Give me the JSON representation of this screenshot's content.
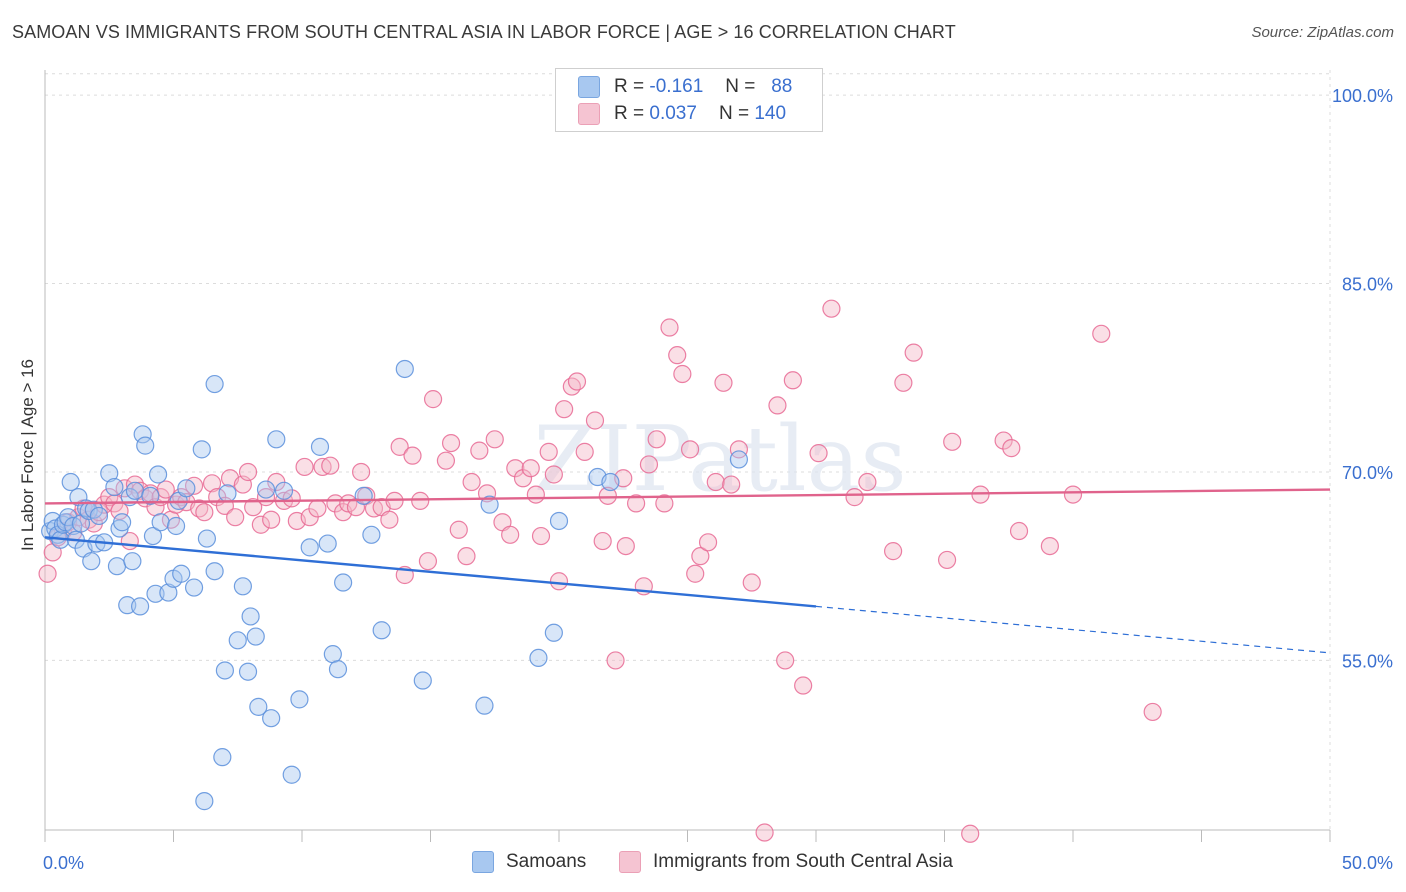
{
  "header": {
    "title": "SAMOAN VS IMMIGRANTS FROM SOUTH CENTRAL ASIA IN LABOR FORCE | AGE > 16 CORRELATION CHART",
    "source": "Source: ZipAtlas.com"
  },
  "watermark": "ZIPatlas",
  "legend": {
    "rows": [
      {
        "r_label": "R =",
        "r_value": "-0.161",
        "n_label": "N =",
        "n_value": "88",
        "color": "#a8c8f0"
      },
      {
        "r_label": "R =",
        "r_value": "0.037",
        "n_label": "N =",
        "n_value": "140",
        "color": "#f5b8c8"
      }
    ]
  },
  "bottom_legend": {
    "items": [
      {
        "label": "Samoans",
        "color": "#a8c8f0"
      },
      {
        "label": "Immigrants from South Central Asia",
        "color": "#f5b8c8"
      }
    ]
  },
  "chart_data": {
    "type": "scatter",
    "title": "SAMOAN VS IMMIGRANTS FROM SOUTH CENTRAL ASIA IN LABOR FORCE | AGE > 16 CORRELATION CHART",
    "xlabel": "",
    "ylabel": "In Labor Force | Age > 16",
    "xlim": [
      0,
      50
    ],
    "ylim": [
      41.5,
      102
    ],
    "x_tick_labels": [
      "0.0%",
      "50.0%"
    ],
    "y_ticks": [
      55,
      70,
      85,
      100
    ],
    "y_tick_labels": [
      "55.0%",
      "70.0%",
      "85.0%",
      "100.0%"
    ],
    "grid": true,
    "legend_position": "top-center",
    "series": [
      {
        "name": "Samoans",
        "color": "#5b8fdc",
        "fill": "#a8c8f0",
        "R": -0.161,
        "N": 88,
        "trend": {
          "x": [
            0,
            30
          ],
          "y": [
            64.8,
            59.3
          ],
          "dashed_to": [
            50,
            55.6
          ]
        },
        "points": [
          [
            0.2,
            65.3
          ],
          [
            0.3,
            66.1
          ],
          [
            0.4,
            65.5
          ],
          [
            0.5,
            65.0
          ],
          [
            0.6,
            64.6
          ],
          [
            0.7,
            65.8
          ],
          [
            0.8,
            66.0
          ],
          [
            0.9,
            66.4
          ],
          [
            1.0,
            69.2
          ],
          [
            1.1,
            65.7
          ],
          [
            1.2,
            64.6
          ],
          [
            1.3,
            68.0
          ],
          [
            1.4,
            65.9
          ],
          [
            1.5,
            63.9
          ],
          [
            1.6,
            67.1
          ],
          [
            1.7,
            66.9
          ],
          [
            1.8,
            62.9
          ],
          [
            1.9,
            67.0
          ],
          [
            2.0,
            64.3
          ],
          [
            2.1,
            66.5
          ],
          [
            2.3,
            64.4
          ],
          [
            2.5,
            69.9
          ],
          [
            2.7,
            68.8
          ],
          [
            2.8,
            62.5
          ],
          [
            2.9,
            65.5
          ],
          [
            3.0,
            66.0
          ],
          [
            3.2,
            59.4
          ],
          [
            3.3,
            68.0
          ],
          [
            3.4,
            62.9
          ],
          [
            3.5,
            68.5
          ],
          [
            3.7,
            59.3
          ],
          [
            3.8,
            73.0
          ],
          [
            3.9,
            72.1
          ],
          [
            4.1,
            68.1
          ],
          [
            4.2,
            64.9
          ],
          [
            4.3,
            60.3
          ],
          [
            4.4,
            69.8
          ],
          [
            4.5,
            66.0
          ],
          [
            4.8,
            60.4
          ],
          [
            5.0,
            61.5
          ],
          [
            5.1,
            65.7
          ],
          [
            5.2,
            67.7
          ],
          [
            5.3,
            61.9
          ],
          [
            5.5,
            68.7
          ],
          [
            5.8,
            60.8
          ],
          [
            6.1,
            71.8
          ],
          [
            6.2,
            43.8
          ],
          [
            6.3,
            64.7
          ],
          [
            6.6,
            77.0
          ],
          [
            6.6,
            62.1
          ],
          [
            6.9,
            47.3
          ],
          [
            7.0,
            54.2
          ],
          [
            7.1,
            68.3
          ],
          [
            7.5,
            56.6
          ],
          [
            7.7,
            60.9
          ],
          [
            7.9,
            54.1
          ],
          [
            8.0,
            58.5
          ],
          [
            8.2,
            56.9
          ],
          [
            8.3,
            51.3
          ],
          [
            8.6,
            68.6
          ],
          [
            8.8,
            50.4
          ],
          [
            9.0,
            72.6
          ],
          [
            9.3,
            68.5
          ],
          [
            9.6,
            45.9
          ],
          [
            9.9,
            51.9
          ],
          [
            10.3,
            64.0
          ],
          [
            10.7,
            72.0
          ],
          [
            11.0,
            64.3
          ],
          [
            11.2,
            55.5
          ],
          [
            11.4,
            54.3
          ],
          [
            11.6,
            61.2
          ],
          [
            12.4,
            68.1
          ],
          [
            12.7,
            65.0
          ],
          [
            13.1,
            57.4
          ],
          [
            14.0,
            78.2
          ],
          [
            14.7,
            53.4
          ],
          [
            17.1,
            51.4
          ],
          [
            17.3,
            67.4
          ],
          [
            19.2,
            55.2
          ],
          [
            19.8,
            57.2
          ],
          [
            20.0,
            66.1
          ],
          [
            21.5,
            69.6
          ],
          [
            22.0,
            69.2
          ],
          [
            27.0,
            71.0
          ]
        ]
      },
      {
        "name": "Immigrants from South Central Asia",
        "color": "#e86a94",
        "fill": "#f5b8c8",
        "R": 0.037,
        "N": 140,
        "trend": {
          "x": [
            0,
            50
          ],
          "y": [
            67.5,
            68.6
          ]
        },
        "points": [
          [
            0.1,
            61.9
          ],
          [
            0.3,
            63.6
          ],
          [
            0.5,
            64.8
          ],
          [
            0.7,
            65.3
          ],
          [
            0.9,
            66.0
          ],
          [
            1.1,
            65.2
          ],
          [
            1.3,
            66.4
          ],
          [
            1.5,
            67.1
          ],
          [
            1.7,
            66.2
          ],
          [
            1.9,
            65.9
          ],
          [
            2.1,
            66.8
          ],
          [
            2.3,
            67.4
          ],
          [
            2.5,
            68.0
          ],
          [
            2.7,
            67.5
          ],
          [
            2.9,
            66.9
          ],
          [
            3.1,
            68.7
          ],
          [
            3.3,
            64.5
          ],
          [
            3.5,
            69.0
          ],
          [
            3.7,
            68.5
          ],
          [
            3.9,
            67.9
          ],
          [
            4.1,
            68.3
          ],
          [
            4.3,
            67.2
          ],
          [
            4.5,
            68.0
          ],
          [
            4.7,
            68.6
          ],
          [
            4.9,
            66.2
          ],
          [
            5.1,
            67.4
          ],
          [
            5.3,
            68.0
          ],
          [
            5.5,
            67.6
          ],
          [
            5.8,
            68.9
          ],
          [
            6.0,
            67.1
          ],
          [
            6.2,
            66.8
          ],
          [
            6.5,
            69.1
          ],
          [
            6.7,
            68.0
          ],
          [
            7.0,
            67.3
          ],
          [
            7.2,
            69.5
          ],
          [
            7.4,
            66.4
          ],
          [
            7.7,
            69.0
          ],
          [
            7.9,
            70.0
          ],
          [
            8.1,
            67.2
          ],
          [
            8.4,
            65.8
          ],
          [
            8.6,
            68.0
          ],
          [
            8.8,
            66.2
          ],
          [
            9.0,
            69.2
          ],
          [
            9.3,
            67.7
          ],
          [
            9.6,
            67.9
          ],
          [
            9.8,
            66.1
          ],
          [
            10.1,
            70.4
          ],
          [
            10.3,
            66.4
          ],
          [
            10.6,
            67.1
          ],
          [
            10.8,
            70.4
          ],
          [
            11.1,
            70.5
          ],
          [
            11.3,
            67.5
          ],
          [
            11.6,
            66.8
          ],
          [
            11.8,
            67.5
          ],
          [
            12.1,
            67.2
          ],
          [
            12.3,
            70.0
          ],
          [
            12.5,
            68.1
          ],
          [
            12.8,
            67.1
          ],
          [
            13.1,
            67.2
          ],
          [
            13.4,
            66.2
          ],
          [
            13.6,
            67.7
          ],
          [
            13.8,
            72.0
          ],
          [
            14.0,
            61.8
          ],
          [
            14.3,
            71.3
          ],
          [
            14.6,
            67.7
          ],
          [
            14.9,
            62.9
          ],
          [
            15.1,
            75.8
          ],
          [
            15.6,
            70.9
          ],
          [
            15.8,
            72.3
          ],
          [
            16.1,
            65.4
          ],
          [
            16.4,
            63.3
          ],
          [
            16.6,
            69.2
          ],
          [
            16.9,
            71.7
          ],
          [
            17.2,
            68.3
          ],
          [
            17.5,
            72.6
          ],
          [
            17.8,
            66.0
          ],
          [
            18.1,
            65.0
          ],
          [
            18.3,
            70.3
          ],
          [
            18.6,
            69.5
          ],
          [
            18.9,
            70.3
          ],
          [
            19.1,
            68.2
          ],
          [
            19.3,
            64.9
          ],
          [
            19.6,
            71.6
          ],
          [
            19.8,
            69.8
          ],
          [
            20.0,
            61.3
          ],
          [
            20.2,
            75.0
          ],
          [
            20.5,
            76.8
          ],
          [
            20.7,
            77.2
          ],
          [
            21.0,
            71.6
          ],
          [
            21.4,
            74.1
          ],
          [
            21.7,
            64.5
          ],
          [
            21.9,
            68.1
          ],
          [
            22.2,
            55.0
          ],
          [
            22.5,
            69.5
          ],
          [
            22.6,
            64.1
          ],
          [
            23.0,
            67.5
          ],
          [
            23.3,
            60.9
          ],
          [
            23.5,
            70.6
          ],
          [
            23.8,
            72.6
          ],
          [
            24.1,
            67.5
          ],
          [
            24.3,
            81.5
          ],
          [
            24.6,
            79.3
          ],
          [
            24.8,
            77.8
          ],
          [
            25.1,
            71.8
          ],
          [
            25.3,
            61.9
          ],
          [
            25.5,
            63.3
          ],
          [
            25.8,
            64.4
          ],
          [
            26.1,
            69.2
          ],
          [
            26.4,
            77.1
          ],
          [
            26.7,
            69.0
          ],
          [
            27.0,
            71.8
          ],
          [
            27.5,
            61.2
          ],
          [
            28.0,
            41.3
          ],
          [
            28.5,
            75.3
          ],
          [
            28.8,
            55.0
          ],
          [
            29.1,
            77.3
          ],
          [
            29.5,
            53.0
          ],
          [
            30.1,
            71.5
          ],
          [
            30.6,
            83.0
          ],
          [
            31.5,
            68.0
          ],
          [
            32.0,
            69.2
          ],
          [
            33.0,
            63.7
          ],
          [
            33.4,
            77.1
          ],
          [
            33.8,
            79.5
          ],
          [
            35.1,
            63.0
          ],
          [
            35.3,
            72.4
          ],
          [
            36.0,
            41.2
          ],
          [
            36.4,
            68.2
          ],
          [
            37.3,
            72.5
          ],
          [
            37.6,
            71.9
          ],
          [
            37.9,
            65.3
          ],
          [
            39.1,
            64.1
          ],
          [
            40.0,
            68.2
          ],
          [
            41.1,
            81.0
          ],
          [
            43.1,
            50.9
          ]
        ]
      }
    ]
  }
}
